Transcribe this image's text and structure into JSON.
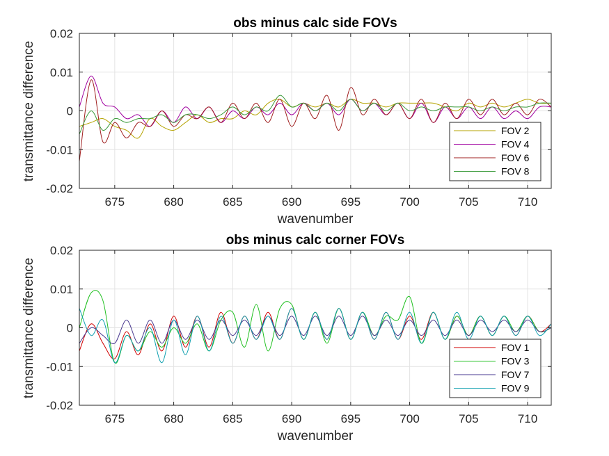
{
  "chart_data": [
    {
      "type": "line",
      "title": "obs minus calc side FOVs",
      "xlabel": "wavenumber",
      "ylabel": "transmittance difference",
      "xlim": [
        672,
        712
      ],
      "ylim": [
        -0.02,
        0.02
      ],
      "xticks": [
        675,
        680,
        685,
        690,
        695,
        700,
        705,
        710
      ],
      "yticks": [
        -0.02,
        -0.01,
        0,
        0.01,
        0.02
      ],
      "ytick_labels": [
        "-0.02",
        "-0.01",
        "0",
        "0.01",
        "0.02"
      ],
      "grid": true,
      "legend_position": "bottom-right",
      "series": [
        {
          "name": "FOV 2",
          "color": "#b5a300",
          "x": [
            672,
            673,
            674,
            675,
            676,
            677,
            678,
            679,
            680,
            681,
            682,
            683,
            684,
            685,
            686,
            687,
            688,
            689,
            690,
            691,
            692,
            693,
            694,
            695,
            696,
            697,
            698,
            699,
            700,
            701,
            702,
            703,
            704,
            705,
            706,
            707,
            708,
            709,
            710,
            711,
            712
          ],
          "y": [
            -0.004,
            -0.003,
            -0.002,
            -0.004,
            -0.005,
            -0.007,
            -0.002,
            -0.004,
            -0.005,
            -0.003,
            -0.001,
            -0.003,
            -0.002,
            -0.002,
            0,
            -0.001,
            0.002,
            0.003,
            0.001,
            0.002,
            0.001,
            0.002,
            0.001,
            0.003,
            0.002,
            0.002,
            0.001,
            0.002,
            0.002,
            0.002,
            0.002,
            0.001,
            0,
            0.002,
            0.001,
            0.002,
            0.001,
            0.002,
            0.003,
            0.002,
            0.002
          ]
        },
        {
          "name": "FOV 4",
          "color": "#a000a0",
          "x": [
            672,
            673,
            674,
            675,
            676,
            677,
            678,
            679,
            680,
            681,
            682,
            683,
            684,
            685,
            686,
            687,
            688,
            689,
            690,
            691,
            692,
            693,
            694,
            695,
            696,
            697,
            698,
            699,
            700,
            701,
            702,
            703,
            704,
            705,
            706,
            707,
            708,
            709,
            710,
            711,
            712
          ],
          "y": [
            0.001,
            0.009,
            0.002,
            0.001,
            -0.002,
            -0.001,
            -0.004,
            0,
            -0.003,
            0.001,
            -0.002,
            0.001,
            -0.003,
            0,
            -0.002,
            0.001,
            -0.001,
            0.002,
            -0.001,
            0.002,
            0,
            0.002,
            -0.001,
            0.003,
            0,
            0.002,
            -0.001,
            0.002,
            -0.002,
            0.002,
            -0.003,
            0.001,
            -0.002,
            0.001,
            -0.002,
            0.001,
            -0.002,
            0,
            -0.002,
            0.001,
            0.001
          ]
        },
        {
          "name": "FOV 6",
          "color": "#a02020",
          "x": [
            672,
            673,
            674,
            675,
            676,
            677,
            678,
            679,
            680,
            681,
            682,
            683,
            684,
            685,
            686,
            687,
            688,
            689,
            690,
            691,
            692,
            693,
            694,
            695,
            696,
            697,
            698,
            699,
            700,
            701,
            702,
            703,
            704,
            705,
            706,
            707,
            708,
            709,
            710,
            711,
            712
          ],
          "y": [
            -0.013,
            0.008,
            -0.008,
            -0.003,
            -0.007,
            -0.003,
            -0.004,
            0,
            -0.004,
            -0.001,
            -0.002,
            0.001,
            -0.003,
            0.002,
            -0.002,
            0.002,
            -0.003,
            0.003,
            -0.004,
            0.002,
            -0.002,
            0.004,
            -0.005,
            0.006,
            -0.001,
            0.003,
            -0.001,
            0.002,
            -0.002,
            0.003,
            -0.003,
            0.002,
            -0.002,
            0.003,
            -0.001,
            0.003,
            -0.001,
            0.002,
            -0.001,
            0.003,
            0.001
          ]
        },
        {
          "name": "FOV 8",
          "color": "#3a9a3a",
          "x": [
            672,
            673,
            674,
            675,
            676,
            677,
            678,
            679,
            680,
            681,
            682,
            683,
            684,
            685,
            686,
            687,
            688,
            689,
            690,
            691,
            692,
            693,
            694,
            695,
            696,
            697,
            698,
            699,
            700,
            701,
            702,
            703,
            704,
            705,
            706,
            707,
            708,
            709,
            710,
            711,
            712
          ],
          "y": [
            -0.006,
            0,
            -0.005,
            -0.002,
            -0.003,
            -0.002,
            -0.002,
            -0.001,
            -0.003,
            -0.001,
            -0.001,
            -0.002,
            -0.001,
            0.001,
            -0.001,
            0.001,
            0,
            0.004,
            0.001,
            0.002,
            0,
            0.002,
            0,
            0.003,
            0,
            0.002,
            0,
            0.002,
            0,
            0.001,
            0,
            0.001,
            0.001,
            0.001,
            0,
            0.001,
            0,
            0.001,
            0.001,
            0.002,
            0.002
          ]
        }
      ]
    },
    {
      "type": "line",
      "title": "obs minus calc corner FOVs",
      "xlabel": "wavenumber",
      "ylabel": "transmittance difference",
      "xlim": [
        672,
        712
      ],
      "ylim": [
        -0.02,
        0.02
      ],
      "xticks": [
        675,
        680,
        685,
        690,
        695,
        700,
        705,
        710
      ],
      "yticks": [
        -0.02,
        -0.01,
        0,
        0.01,
        0.02
      ],
      "ytick_labels": [
        "-0.02",
        "-0.01",
        "0",
        "0.01",
        "0.02"
      ],
      "grid": true,
      "legend_position": "bottom-right",
      "series": [
        {
          "name": "FOV 1",
          "color": "#d00000",
          "x": [
            672,
            673,
            674,
            675,
            676,
            677,
            678,
            679,
            680,
            681,
            682,
            683,
            684,
            685,
            686,
            687,
            688,
            689,
            690,
            691,
            692,
            693,
            694,
            695,
            696,
            697,
            698,
            699,
            700,
            701,
            702,
            703,
            704,
            705,
            706,
            707,
            708,
            709,
            710,
            711,
            712
          ],
          "y": [
            -0.006,
            0.001,
            -0.004,
            -0.008,
            -0.001,
            -0.007,
            0.001,
            -0.006,
            0.003,
            -0.005,
            0.003,
            -0.005,
            0.004,
            -0.004,
            0.003,
            -0.003,
            0.004,
            -0.003,
            0.005,
            -0.003,
            0.004,
            -0.003,
            0.005,
            -0.003,
            0.004,
            -0.003,
            0.004,
            -0.003,
            0.003,
            -0.003,
            0.004,
            -0.003,
            0.003,
            -0.002,
            0.003,
            -0.002,
            0.003,
            -0.002,
            0.003,
            -0.001,
            0.001
          ]
        },
        {
          "name": "FOV 3",
          "color": "#20c020",
          "x": [
            672,
            673,
            674,
            675,
            676,
            677,
            678,
            679,
            680,
            681,
            682,
            683,
            684,
            685,
            686,
            687,
            688,
            689,
            690,
            691,
            692,
            693,
            694,
            695,
            696,
            697,
            698,
            699,
            700,
            701,
            702,
            703,
            704,
            705,
            706,
            707,
            708,
            709,
            710,
            711,
            712
          ],
          "y": [
            0,
            0.009,
            0.007,
            -0.009,
            -0.002,
            -0.006,
            -0.001,
            -0.005,
            0,
            -0.004,
            0.001,
            -0.006,
            0.002,
            0.004,
            -0.005,
            0.006,
            -0.006,
            0.005,
            0.006,
            -0.003,
            0.004,
            -0.004,
            0.005,
            -0.003,
            0.004,
            -0.002,
            0.003,
            0.002,
            0.008,
            -0.004,
            0.004,
            -0.003,
            0.003,
            -0.002,
            0.003,
            -0.002,
            0.003,
            -0.001,
            0.003,
            -0.001,
            0
          ]
        },
        {
          "name": "FOV 7",
          "color": "#4a3a90",
          "x": [
            672,
            673,
            674,
            675,
            676,
            677,
            678,
            679,
            680,
            681,
            682,
            683,
            684,
            685,
            686,
            687,
            688,
            689,
            690,
            691,
            692,
            693,
            694,
            695,
            696,
            697,
            698,
            699,
            700,
            701,
            702,
            703,
            704,
            705,
            706,
            707,
            708,
            709,
            710,
            711,
            712
          ],
          "y": [
            -0.004,
            0,
            -0.002,
            -0.004,
            0.002,
            -0.004,
            0.002,
            -0.004,
            0.002,
            -0.003,
            0.002,
            -0.003,
            0.002,
            -0.002,
            0.002,
            -0.002,
            0.003,
            -0.002,
            0.003,
            -0.002,
            0.003,
            -0.002,
            0.003,
            -0.002,
            0.003,
            -0.002,
            0.002,
            -0.002,
            0.002,
            -0.002,
            0.002,
            -0.002,
            0.002,
            -0.002,
            0.002,
            -0.001,
            0.002,
            -0.001,
            0.002,
            -0.001,
            0
          ]
        },
        {
          "name": "FOV 9",
          "color": "#10a0b0",
          "x": [
            672,
            673,
            674,
            675,
            676,
            677,
            678,
            679,
            680,
            681,
            682,
            683,
            684,
            685,
            686,
            687,
            688,
            689,
            690,
            691,
            692,
            693,
            694,
            695,
            696,
            697,
            698,
            699,
            700,
            701,
            702,
            703,
            704,
            705,
            706,
            707,
            708,
            709,
            710,
            711,
            712
          ],
          "y": [
            0.005,
            -0.002,
            0.002,
            -0.009,
            -0.002,
            -0.006,
            0,
            -0.009,
            0.002,
            -0.007,
            0.003,
            -0.006,
            0.003,
            -0.004,
            0.003,
            -0.003,
            0.003,
            -0.003,
            0.005,
            -0.003,
            0.004,
            -0.003,
            0.005,
            -0.003,
            0.004,
            -0.003,
            0.004,
            -0.003,
            0.004,
            -0.004,
            0.004,
            -0.003,
            0.004,
            -0.003,
            0.003,
            -0.002,
            0.003,
            -0.002,
            0.003,
            -0.002,
            0.001
          ]
        }
      ]
    }
  ]
}
